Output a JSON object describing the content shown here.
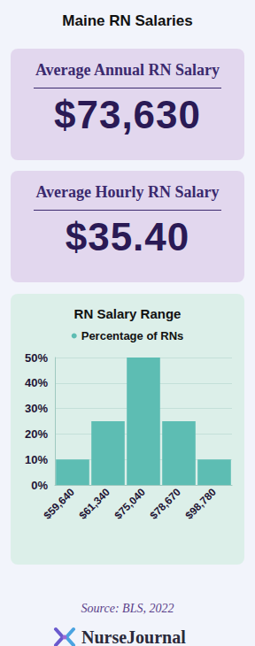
{
  "header": {
    "title": "Maine RN Salaries"
  },
  "cards": [
    {
      "label": "Average Annual RN Salary",
      "value": "$73,630"
    },
    {
      "label": "Average Hourly RN Salary",
      "value": "$35.40"
    }
  ],
  "chart_data": {
    "type": "bar",
    "title": "RN Salary Range",
    "categories": [
      "$59,640",
      "$61,340",
      "$75,040",
      "$78,670",
      "$98,780"
    ],
    "series": [
      {
        "name": "Percentage of RNs",
        "color": "#5dbdb3",
        "values": [
          10,
          25,
          50,
          25,
          10
        ]
      }
    ],
    "ylim": [
      0,
      50
    ],
    "yticks": [
      {
        "value": 0,
        "label": "0%"
      },
      {
        "value": 10,
        "label": "10%"
      },
      {
        "value": 20,
        "label": "20%"
      },
      {
        "value": 30,
        "label": "30%"
      },
      {
        "value": 40,
        "label": "40%"
      },
      {
        "value": 50,
        "label": "50%"
      }
    ],
    "grid": true,
    "legend": "top",
    "data_labels": false
  },
  "footer": {
    "source": "Source: BLS, 2022",
    "brand": "NurseJournal"
  }
}
